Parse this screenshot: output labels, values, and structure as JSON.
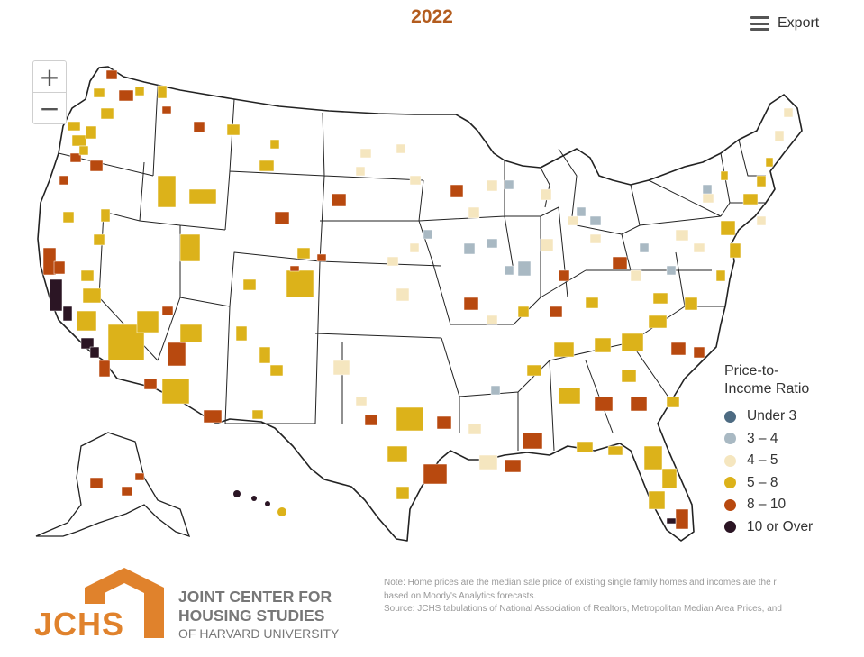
{
  "title": "2022",
  "export": {
    "label": "Export",
    "icon": "hamburger-menu-icon"
  },
  "zoom": {
    "in": "+",
    "out": "−"
  },
  "legend": {
    "title_line1": "Price-to-",
    "title_line2": "Income Ratio",
    "items": [
      {
        "label": "Under 3",
        "color": "#4d6b82"
      },
      {
        "label": "3 – 4",
        "color": "#a9b9c3"
      },
      {
        "label": "4 – 5",
        "color": "#f5e6bf"
      },
      {
        "label": "5 – 8",
        "color": "#dcb21a"
      },
      {
        "label": "8 – 10",
        "color": "#b8490f"
      },
      {
        "label": "10 or Over",
        "color": "#2b1524"
      }
    ]
  },
  "logo": {
    "letters": "JCHS",
    "line1": "JOINT CENTER FOR",
    "line2": "HOUSING STUDIES",
    "line3": "OF HARVARD UNIVERSITY",
    "color": "#e0822c"
  },
  "note": {
    "line1": "Note: Home prices are the median sale price of existing single family homes and incomes are the r",
    "line2": "based on Moody's Analytics forecasts.",
    "line3": "Source: JCHS tabulations of National Association of Realtors, Metropolitan Median Area Prices, and"
  }
}
